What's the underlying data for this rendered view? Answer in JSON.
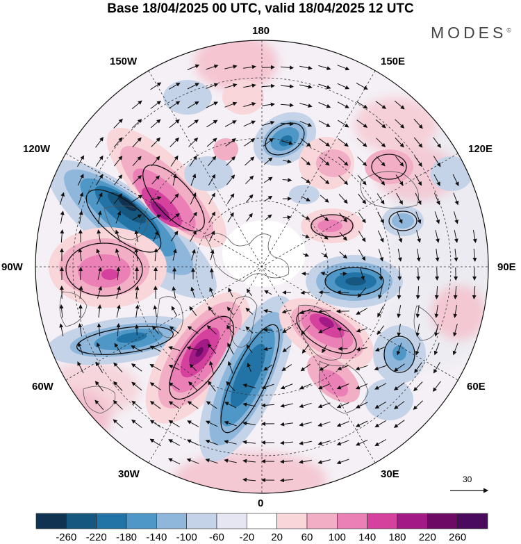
{
  "title": "Base 18/04/2025 00 UTC, valid 18/04/2025 12 UTC",
  "brand": "MODES",
  "brand_mark": "©",
  "longitude_labels": {
    "top": "180",
    "bottom": "0",
    "left": "90W",
    "right": "90E",
    "upper_left_1": "150W",
    "upper_left_2": "120W",
    "upper_right_1": "150E",
    "upper_right_2": "120E",
    "lower_left_1": "60W",
    "lower_left_2": "30W",
    "lower_right_1": "60E",
    "lower_right_2": "30E"
  },
  "reference_vector": "30",
  "colorbar": {
    "ticks": [
      "-260",
      "-220",
      "-180",
      "-140",
      "-100",
      "-60",
      "-20",
      "20",
      "60",
      "100",
      "140",
      "180",
      "220",
      "260"
    ],
    "colors": [
      "#0f3350",
      "#16577f",
      "#2273a6",
      "#4f97c6",
      "#8fb7dc",
      "#c5d3e8",
      "#e6e6f2",
      "#ffffff",
      "#f9d6d9",
      "#f2aec5",
      "#eb80b6",
      "#d4429e",
      "#a31a86",
      "#6c0a66",
      "#4a0a5e"
    ]
  },
  "colors": {
    "negative": "#16577f",
    "positive": "#d4429e",
    "land_line": "#555555",
    "grid_line": "#333333"
  }
}
